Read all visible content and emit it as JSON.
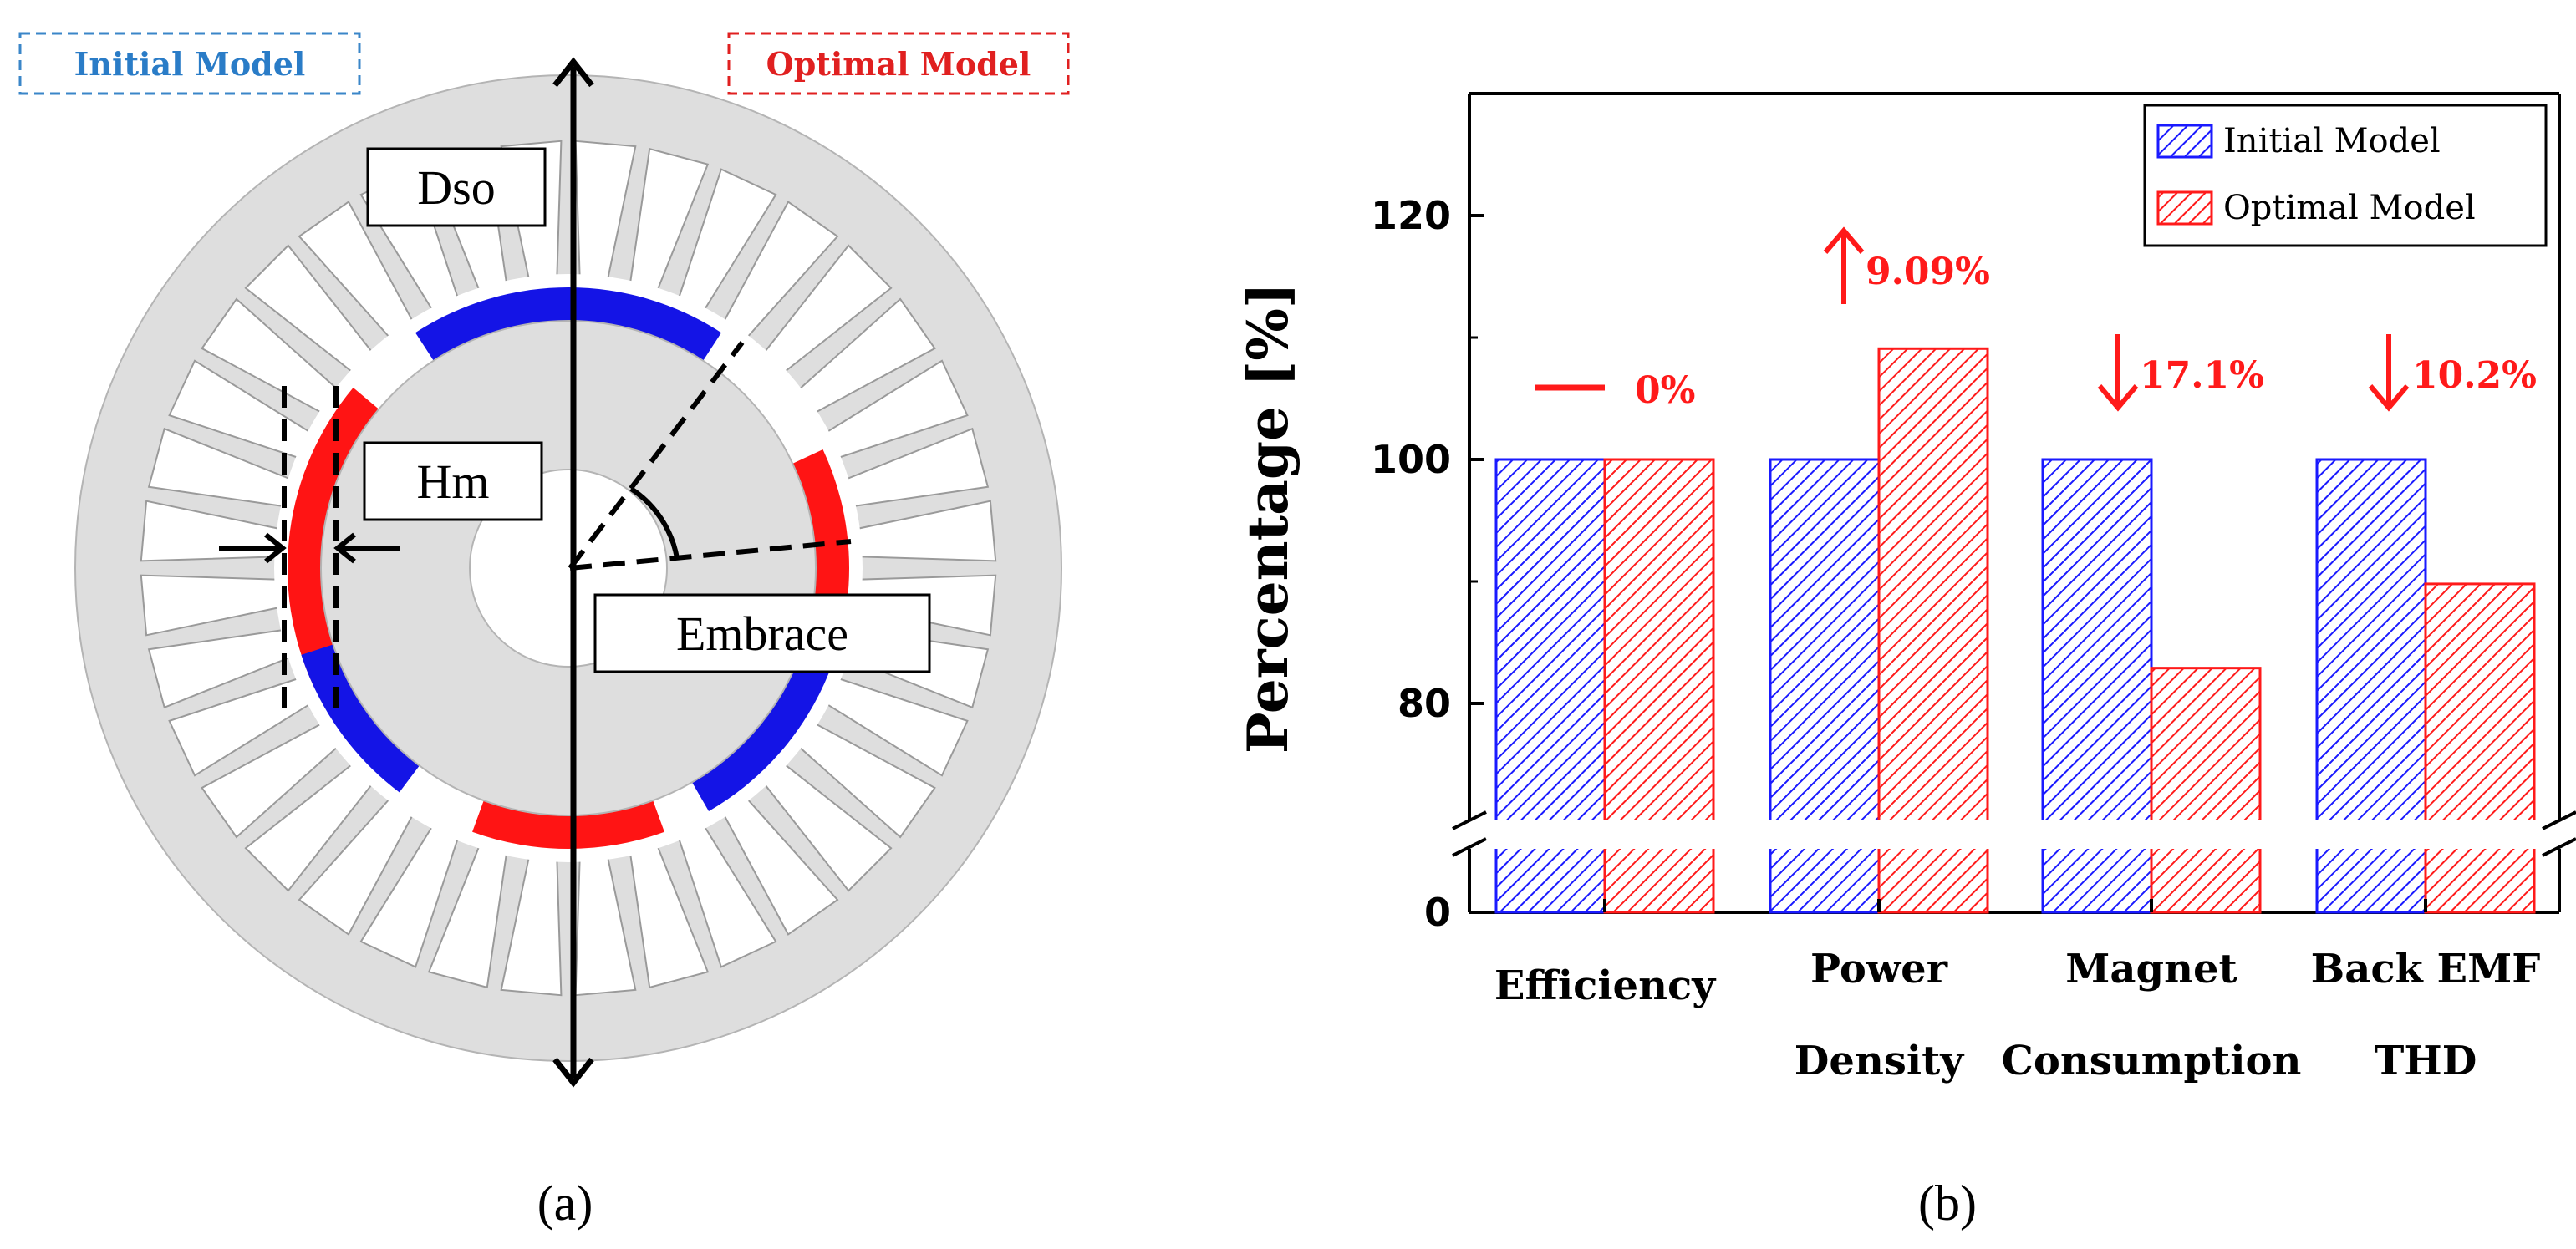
{
  "figure_a": {
    "legend_initial": "Initial Model",
    "legend_optimal": "Optimal Model",
    "label_dso": "Dso",
    "label_hm": "Hm",
    "label_embrace": "Embrace",
    "caption": "(a)",
    "stator_slots": 36,
    "magnet_colors": {
      "initial": "#1414e6",
      "optimal": "#ff1414"
    }
  },
  "figure_b": {
    "caption": "(b)"
  },
  "chart_data": {
    "type": "bar",
    "title": "",
    "xlabel": "",
    "ylabel": "Percentage [%]",
    "categories": [
      {
        "line1": "Efficiency",
        "line2": ""
      },
      {
        "line1": "Power",
        "line2": "Density"
      },
      {
        "line1": "Magnet",
        "line2": "Consumption"
      },
      {
        "line1": "Back EMF",
        "line2": "THD"
      }
    ],
    "series": [
      {
        "name": "Initial Model",
        "color": "#1a1aff",
        "pattern": "hatch",
        "values": [
          100,
          100,
          100,
          100
        ]
      },
      {
        "name": "Optimal Model",
        "color": "#ff1a1a",
        "pattern": "hatch",
        "values": [
          100,
          109.09,
          82.9,
          89.8
        ]
      }
    ],
    "annotations": [
      {
        "symbol": "—",
        "text": "0%",
        "category": "Efficiency"
      },
      {
        "symbol": "↑",
        "text": "9.09%",
        "category": "Power Density"
      },
      {
        "symbol": "↓",
        "text": "17.1%",
        "category": "Magnet Consumption"
      },
      {
        "symbol": "↓",
        "text": "10.2%",
        "category": "Back EMF THD"
      }
    ],
    "yticks": [
      "0",
      "80",
      "100",
      "120"
    ],
    "ylim_upper": [
      70,
      130
    ],
    "ylim_lower": [
      0,
      5
    ],
    "axis_break": true,
    "grid": false,
    "legend_position": "top-right"
  }
}
